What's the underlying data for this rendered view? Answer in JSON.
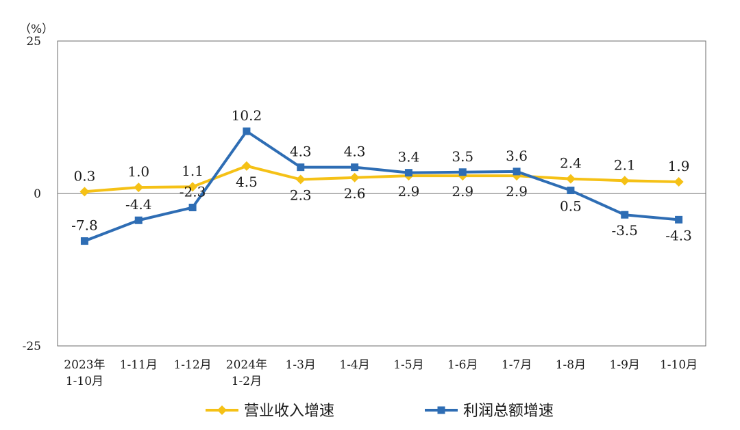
{
  "chart_data": {
    "type": "line",
    "unit_label": "（%）",
    "ylim": [
      -25,
      25
    ],
    "y_ticks": [
      25,
      0,
      -25
    ],
    "categories": [
      [
        "2023年",
        "1-10月"
      ],
      [
        "1-11月"
      ],
      [
        "1-12月"
      ],
      [
        "2024年",
        "1-2月"
      ],
      [
        "1-3月"
      ],
      [
        "1-4月"
      ],
      [
        "1-5月"
      ],
      [
        "1-6月"
      ],
      [
        "1-7月"
      ],
      [
        "1-8月"
      ],
      [
        "1-9月"
      ],
      [
        "1-10月"
      ]
    ],
    "series": [
      {
        "name": "营业收入增速",
        "color": "#F5C116",
        "marker": "diamond",
        "values": [
          0.3,
          1.0,
          1.1,
          4.5,
          2.3,
          2.6,
          2.9,
          2.9,
          2.9,
          2.4,
          2.1,
          1.9
        ],
        "label_position": [
          "above",
          "above",
          "above",
          "below",
          "below",
          "below",
          "below",
          "below",
          "below",
          "above",
          "above",
          "above"
        ]
      },
      {
        "name": "利润总额增速",
        "color": "#2E6DB4",
        "marker": "square",
        "values": [
          -7.8,
          -4.4,
          -2.3,
          10.2,
          4.3,
          4.3,
          3.4,
          3.5,
          3.6,
          0.5,
          -3.5,
          -4.3
        ],
        "label_position": [
          "above",
          "above",
          "above",
          "above",
          "above",
          "above",
          "above",
          "above",
          "above",
          "below",
          "below",
          "below"
        ]
      }
    ],
    "grid": false,
    "legend_position": "bottom"
  }
}
